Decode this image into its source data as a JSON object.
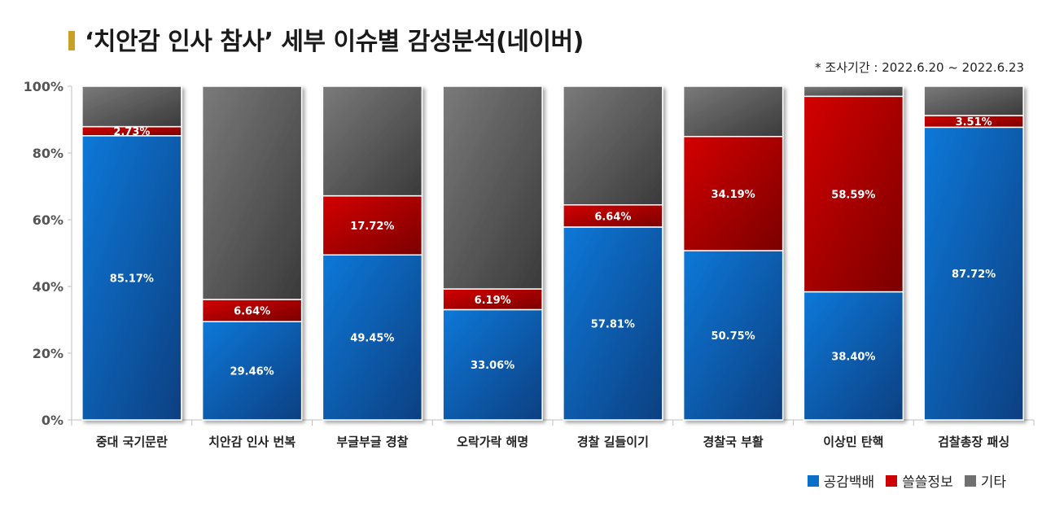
{
  "header": {
    "title": "‘치안감 인사 참사’ 세부 이슈별 감성분석(네이버)",
    "note": "* 조사기간 : 2022.6.20 ~ 2022.6.23"
  },
  "chart_data": {
    "type": "bar",
    "stacked": true,
    "title": "‘치안감 인사 참사’ 세부 이슈별 감성분석(네이버)",
    "categories": [
      "중대 국기문란",
      "치안감 인사 번복",
      "부글부글 경찰",
      "오락가락 해명",
      "경찰 길들이기",
      "경찰국 부활",
      "이상민 탄핵",
      "검찰총장 패싱"
    ],
    "series": [
      {
        "name": "공감백배",
        "color": "#1565c0",
        "values": [
          85.17,
          29.46,
          49.45,
          33.06,
          57.81,
          50.75,
          38.4,
          87.72
        ]
      },
      {
        "name": "쓸쓸정보",
        "color": "#c00000",
        "values": [
          2.73,
          6.64,
          17.72,
          6.19,
          6.64,
          34.19,
          58.59,
          3.51
        ]
      },
      {
        "name": "기타",
        "color": "#6e6e6e",
        "values": [
          12.1,
          63.9,
          32.83,
          60.75,
          35.55,
          15.06,
          3.01,
          8.77
        ]
      }
    ],
    "data_labels": [
      [
        "85.17%",
        "29.46%",
        "49.45%",
        "33.06%",
        "57.81%",
        "50.75%",
        "38.40%",
        "87.72%"
      ],
      [
        "2.73%",
        "6.64%",
        "17.72%",
        "6.19%",
        "6.64%",
        "34.19%",
        "58.59%",
        "3.51%"
      ]
    ],
    "yticks": [
      "0%",
      "20%",
      "40%",
      "60%",
      "80%",
      "100%"
    ],
    "ylim": [
      0,
      100
    ],
    "grid": false,
    "legend_position": "bottom-right"
  }
}
